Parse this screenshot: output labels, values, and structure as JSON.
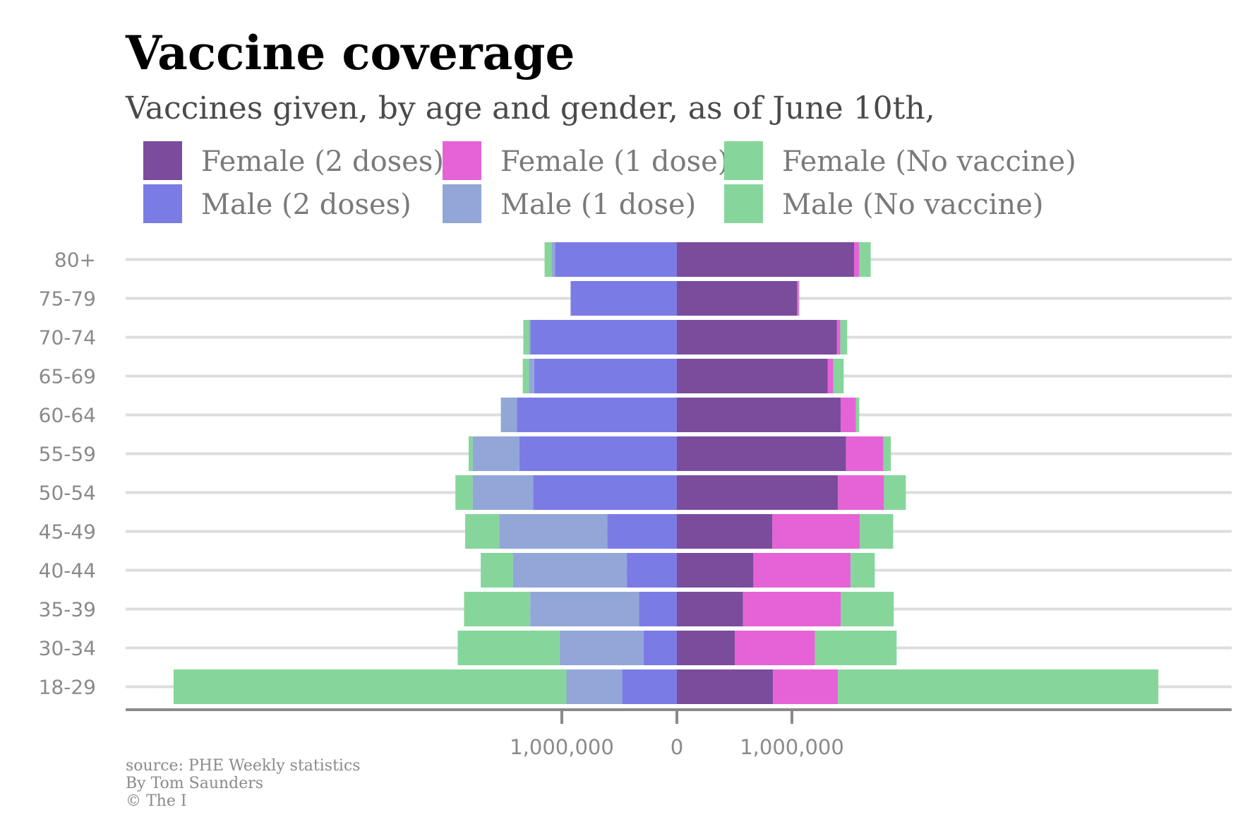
{
  "chart_data": {
    "type": "bar",
    "orientation": "horizontal-diverging",
    "title": "Vaccine coverage",
    "subtitle": "Vaccines given, by age and gender, as of June 10th,",
    "categories": [
      "80+",
      "75-79",
      "70-74",
      "65-69",
      "60-64",
      "55-59",
      "50-54",
      "45-49",
      "40-44",
      "35-39",
      "30-34",
      "18-29"
    ],
    "series": [
      {
        "name": "Female (2 doses)",
        "side": "right",
        "color": "#7b4b9c",
        "values": [
          1540000,
          1045000,
          1390000,
          1310000,
          1425000,
          1470000,
          1400000,
          830000,
          665000,
          575000,
          505000,
          835000
        ]
      },
      {
        "name": "Female (1 dose)",
        "side": "right",
        "color": "#e563d6",
        "values": [
          45000,
          15000,
          30000,
          50000,
          130000,
          325000,
          400000,
          760000,
          845000,
          850000,
          695000,
          565000
        ]
      },
      {
        "name": "Female (No vaccine)",
        "side": "right",
        "color": "#86d69b",
        "values": [
          100000,
          5000,
          60000,
          90000,
          30000,
          65000,
          190000,
          290000,
          210000,
          460000,
          710000,
          2785000
        ]
      },
      {
        "name": "Male (2 doses)",
        "side": "left",
        "color": "#7b7be6",
        "values": [
          1060000,
          920000,
          1270000,
          1240000,
          1390000,
          1370000,
          1250000,
          605000,
          435000,
          330000,
          290000,
          475000
        ]
      },
      {
        "name": "Male (1 dose)",
        "side": "left",
        "color": "#92a6d8",
        "values": [
          30000,
          5000,
          15000,
          45000,
          140000,
          405000,
          525000,
          940000,
          990000,
          945000,
          730000,
          485000
        ]
      },
      {
        "name": "Male (No vaccine)",
        "side": "left",
        "color": "#86d69b",
        "values": [
          60000,
          0,
          50000,
          55000,
          0,
          35000,
          150000,
          295000,
          280000,
          575000,
          885000,
          3415000
        ]
      }
    ],
    "legend": {
      "placement": "top",
      "columns": 3,
      "order": [
        "Female (2 doses)",
        "Female (1 dose)",
        "Female (No vaccine)",
        "Male (2 doses)",
        "Male (1 dose)",
        "Male (No vaccine)"
      ]
    },
    "xlim": [
      -4400000,
      4800000
    ],
    "x_ticks": [
      {
        "value": -1000000,
        "label": "1,000,000"
      },
      {
        "value": 0,
        "label": "0"
      },
      {
        "value": 1000000,
        "label": "1,000,000"
      }
    ],
    "grid": true,
    "axis_color": "#8a8a8a",
    "grid_color": "#dddddd"
  },
  "captions": {
    "source": "source: PHE Weekly statistics",
    "author": "By Tom Saunders",
    "copyright": "© The I"
  }
}
